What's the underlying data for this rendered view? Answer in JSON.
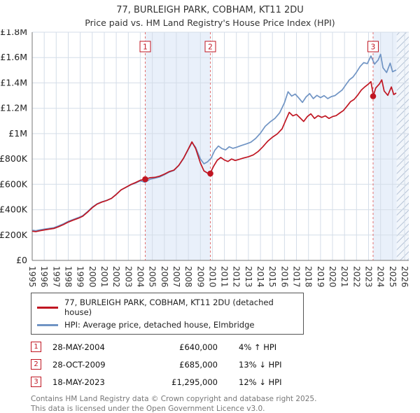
{
  "title": "77, BURLEIGH PARK, COBHAM, KT11 2DU",
  "subtitle": "Price paid vs. HM Land Registry's House Price Index (HPI)",
  "colors": {
    "red": "#c01622",
    "blue": "#7094c4",
    "band": "#e9f0fa",
    "grid": "#d4dde8",
    "dashed": "#e27070",
    "axis": "#777777"
  },
  "chart_data": {
    "type": "line",
    "units": "GBP_thousands",
    "xlim": [
      1995,
      2026.35
    ],
    "ylim": [
      0,
      1800
    ],
    "x_ticks": [
      "1995",
      "1996",
      "1997",
      "1998",
      "1999",
      "2000",
      "2001",
      "2002",
      "2003",
      "2004",
      "2005",
      "2006",
      "2007",
      "2008",
      "2009",
      "2010",
      "2011",
      "2012",
      "2013",
      "2014",
      "2015",
      "2016",
      "2017",
      "2018",
      "2019",
      "2020",
      "2021",
      "2022",
      "2023",
      "2024",
      "2025",
      "2026"
    ],
    "y_ticks": [
      {
        "v": 0,
        "label": "£0"
      },
      {
        "v": 200,
        "label": "£200K"
      },
      {
        "v": 400,
        "label": "£400K"
      },
      {
        "v": 600,
        "label": "£600K"
      },
      {
        "v": 800,
        "label": "£800K"
      },
      {
        "v": 1000,
        "label": "£1M"
      },
      {
        "v": 1200,
        "label": "£1.2M"
      },
      {
        "v": 1400,
        "label": "£1.4M"
      },
      {
        "v": 1600,
        "label": "£1.6M"
      },
      {
        "v": 1800,
        "label": "£1.8M"
      }
    ],
    "bands": [
      [
        2004.41,
        2009.83
      ],
      [
        2023.38,
        2025.35
      ]
    ],
    "hatch_band": [
      2025.35,
      2026.35
    ],
    "sale_markers": [
      {
        "label": "1",
        "x": 2004.41,
        "y": 640
      },
      {
        "label": "2",
        "x": 2009.83,
        "y": 685
      },
      {
        "label": "3",
        "x": 2023.38,
        "y": 1295
      }
    ],
    "series": [
      {
        "name": "77, BURLEIGH PARK, COBHAM, KT11 2DU (detached house)",
        "color": "#c01622",
        "points": [
          [
            1995,
            230
          ],
          [
            1995.3,
            227
          ],
          [
            1995.6,
            233
          ],
          [
            1996,
            240
          ],
          [
            1996.4,
            246
          ],
          [
            1996.8,
            252
          ],
          [
            1997.2,
            266
          ],
          [
            1997.6,
            282
          ],
          [
            1998,
            302
          ],
          [
            1998.4,
            317
          ],
          [
            1998.8,
            331
          ],
          [
            1999.2,
            348
          ],
          [
            1999.6,
            380
          ],
          [
            2000,
            416
          ],
          [
            2000.4,
            444
          ],
          [
            2000.8,
            460
          ],
          [
            2001.2,
            472
          ],
          [
            2001.6,
            489
          ],
          [
            2002,
            520
          ],
          [
            2002.4,
            556
          ],
          [
            2002.8,
            577
          ],
          [
            2003.2,
            598
          ],
          [
            2003.6,
            614
          ],
          [
            2004,
            632
          ],
          [
            2004.4,
            640
          ],
          [
            2004.8,
            652
          ],
          [
            2005.2,
            655
          ],
          [
            2005.6,
            664
          ],
          [
            2006,
            680
          ],
          [
            2006.4,
            700
          ],
          [
            2006.8,
            712
          ],
          [
            2007.2,
            750
          ],
          [
            2007.6,
            806
          ],
          [
            2008,
            880
          ],
          [
            2008.3,
            935
          ],
          [
            2008.6,
            884
          ],
          [
            2009,
            768
          ],
          [
            2009.3,
            706
          ],
          [
            2009.6,
            688
          ],
          [
            2009.8,
            685
          ],
          [
            2010.1,
            742
          ],
          [
            2010.4,
            790
          ],
          [
            2010.7,
            812
          ],
          [
            2011,
            792
          ],
          [
            2011.3,
            780
          ],
          [
            2011.6,
            800
          ],
          [
            2011.9,
            788
          ],
          [
            2012.2,
            796
          ],
          [
            2012.6,
            808
          ],
          [
            2013,
            818
          ],
          [
            2013.4,
            832
          ],
          [
            2013.8,
            858
          ],
          [
            2014.2,
            896
          ],
          [
            2014.6,
            940
          ],
          [
            2015,
            972
          ],
          [
            2015.4,
            998
          ],
          [
            2015.8,
            1038
          ],
          [
            2016.1,
            1104
          ],
          [
            2016.4,
            1168
          ],
          [
            2016.7,
            1140
          ],
          [
            2017,
            1152
          ],
          [
            2017.3,
            1124
          ],
          [
            2017.6,
            1096
          ],
          [
            2017.9,
            1134
          ],
          [
            2018.2,
            1156
          ],
          [
            2018.5,
            1120
          ],
          [
            2018.8,
            1142
          ],
          [
            2019.1,
            1128
          ],
          [
            2019.4,
            1140
          ],
          [
            2019.7,
            1120
          ],
          [
            2020,
            1134
          ],
          [
            2020.3,
            1142
          ],
          [
            2020.6,
            1162
          ],
          [
            2020.9,
            1182
          ],
          [
            2021.2,
            1216
          ],
          [
            2021.5,
            1252
          ],
          [
            2021.8,
            1270
          ],
          [
            2022.1,
            1304
          ],
          [
            2022.4,
            1344
          ],
          [
            2022.7,
            1370
          ],
          [
            2023,
            1392
          ],
          [
            2023.2,
            1410
          ],
          [
            2023.4,
            1300
          ],
          [
            2023.6,
            1360
          ],
          [
            2023.9,
            1392
          ],
          [
            2024.1,
            1424
          ],
          [
            2024.3,
            1336
          ],
          [
            2024.6,
            1302
          ],
          [
            2024.9,
            1368
          ],
          [
            2025.1,
            1308
          ],
          [
            2025.3,
            1320
          ]
        ]
      },
      {
        "name": "HPI: Average price, detached house, Elmbridge",
        "color": "#7094c4",
        "points": [
          [
            1995,
            238
          ],
          [
            1995.3,
            234
          ],
          [
            1995.6,
            240
          ],
          [
            1996,
            247
          ],
          [
            1996.4,
            252
          ],
          [
            1996.8,
            258
          ],
          [
            1997.2,
            272
          ],
          [
            1997.6,
            288
          ],
          [
            1998,
            308
          ],
          [
            1998.4,
            322
          ],
          [
            1998.8,
            336
          ],
          [
            1999.2,
            352
          ],
          [
            1999.6,
            384
          ],
          [
            2000,
            420
          ],
          [
            2000.4,
            446
          ],
          [
            2000.8,
            462
          ],
          [
            2001.2,
            474
          ],
          [
            2001.6,
            490
          ],
          [
            2002,
            522
          ],
          [
            2002.4,
            556
          ],
          [
            2002.8,
            576
          ],
          [
            2003.2,
            596
          ],
          [
            2003.6,
            610
          ],
          [
            2004,
            628
          ],
          [
            2004.4,
            616
          ],
          [
            2004.8,
            640
          ],
          [
            2005.2,
            648
          ],
          [
            2005.6,
            658
          ],
          [
            2006,
            676
          ],
          [
            2006.4,
            696
          ],
          [
            2006.8,
            710
          ],
          [
            2007.2,
            748
          ],
          [
            2007.6,
            804
          ],
          [
            2008,
            876
          ],
          [
            2008.3,
            930
          ],
          [
            2008.6,
            892
          ],
          [
            2009,
            800
          ],
          [
            2009.3,
            762
          ],
          [
            2009.6,
            778
          ],
          [
            2009.9,
            808
          ],
          [
            2010.2,
            868
          ],
          [
            2010.5,
            902
          ],
          [
            2010.8,
            882
          ],
          [
            2011.1,
            872
          ],
          [
            2011.4,
            896
          ],
          [
            2011.7,
            884
          ],
          [
            2012,
            892
          ],
          [
            2012.4,
            906
          ],
          [
            2012.8,
            918
          ],
          [
            2013.2,
            932
          ],
          [
            2013.6,
            962
          ],
          [
            2014,
            1004
          ],
          [
            2014.4,
            1058
          ],
          [
            2014.8,
            1092
          ],
          [
            2015.2,
            1120
          ],
          [
            2015.6,
            1164
          ],
          [
            2016,
            1244
          ],
          [
            2016.3,
            1330
          ],
          [
            2016.6,
            1296
          ],
          [
            2016.9,
            1312
          ],
          [
            2017.2,
            1280
          ],
          [
            2017.5,
            1246
          ],
          [
            2017.8,
            1290
          ],
          [
            2018.1,
            1316
          ],
          [
            2018.4,
            1276
          ],
          [
            2018.7,
            1302
          ],
          [
            2019,
            1284
          ],
          [
            2019.3,
            1300
          ],
          [
            2019.6,
            1276
          ],
          [
            2019.9,
            1292
          ],
          [
            2020.2,
            1300
          ],
          [
            2020.5,
            1322
          ],
          [
            2020.8,
            1344
          ],
          [
            2021.1,
            1384
          ],
          [
            2021.4,
            1424
          ],
          [
            2021.7,
            1446
          ],
          [
            2022,
            1484
          ],
          [
            2022.3,
            1530
          ],
          [
            2022.6,
            1560
          ],
          [
            2022.9,
            1552
          ],
          [
            2023.2,
            1612
          ],
          [
            2023.5,
            1548
          ],
          [
            2023.8,
            1580
          ],
          [
            2024,
            1626
          ],
          [
            2024.2,
            1520
          ],
          [
            2024.5,
            1482
          ],
          [
            2024.8,
            1556
          ],
          [
            2025,
            1488
          ],
          [
            2025.3,
            1502
          ]
        ]
      }
    ]
  },
  "legend": [
    {
      "label": "77, BURLEIGH PARK, COBHAM, KT11 2DU (detached house)",
      "color": "#c01622"
    },
    {
      "label": "HPI: Average price, detached house, Elmbridge",
      "color": "#7094c4"
    }
  ],
  "transactions": [
    {
      "num": "1",
      "date": "28-MAY-2004",
      "price": "£640,000",
      "hpi": "4% ↑ HPI"
    },
    {
      "num": "2",
      "date": "28-OCT-2009",
      "price": "£685,000",
      "hpi": "13% ↓ HPI"
    },
    {
      "num": "3",
      "date": "18-MAY-2023",
      "price": "£1,295,000",
      "hpi": "12% ↓ HPI"
    }
  ],
  "footer": {
    "line1": "Contains HM Land Registry data © Crown copyright and database right 2025.",
    "line2": "This data is licensed under the Open Government Licence v3.0."
  }
}
